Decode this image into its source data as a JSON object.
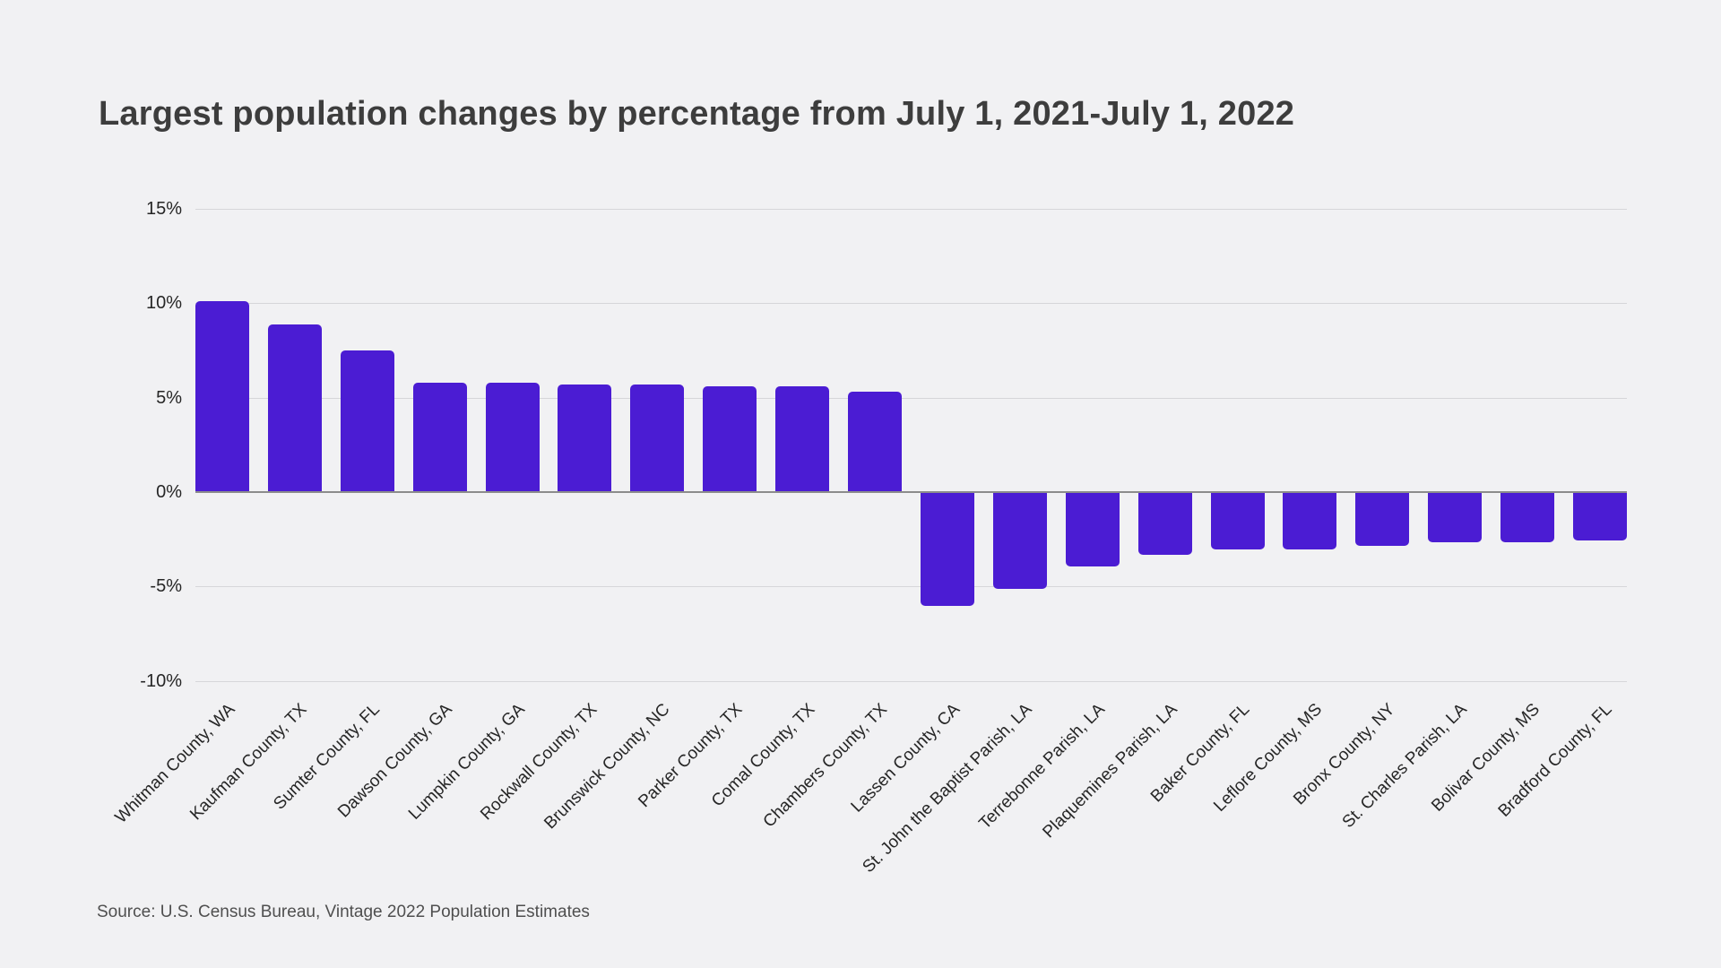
{
  "title": "Largest population changes by percentage from July 1, 2021-July 1, 2022",
  "source_note": "Source: U.S. Census Bureau, Vintage 2022 Population Estimates",
  "colors": {
    "background": "#F1F1F3",
    "bar": "#4B1CD3",
    "gridline": "#D6D6D9",
    "zero_line": "#8C8C8C",
    "title_text": "#3D3D3D",
    "axis_text": "#262626",
    "source_text": "#4F4F4F"
  },
  "chart_data": {
    "type": "bar",
    "title": "Largest population changes by percentage from July 1, 2021-July 1, 2022",
    "unit": "percent",
    "categories": [
      "Whitman County, WA",
      "Kaufman County, TX",
      "Sumter County, FL",
      "Dawson County, GA",
      "Lumpkin County, GA",
      "Rockwall County, TX",
      "Brunswick County, NC",
      "Parker County, TX",
      "Comal County, TX",
      "Chambers County, TX",
      "Lassen County, CA",
      "St. John the Baptist Parish, LA",
      "Terrebonne Parish, LA",
      "Plaquemines Parish, LA",
      "Baker County, FL",
      "Leflore County, MS",
      "Bronx County, NY",
      "St. Charles Parish, LA",
      "Bolivar County, MS",
      "Bradford County, FL"
    ],
    "values": [
      10.1,
      8.9,
      7.5,
      5.8,
      5.8,
      5.7,
      5.7,
      5.6,
      5.6,
      5.3,
      -6.0,
      -5.1,
      -3.9,
      -3.3,
      -3.0,
      -3.0,
      -2.8,
      -2.6,
      -2.6,
      -2.5
    ],
    "y_tick_labels": [
      "15%",
      "10%",
      "5%",
      "0%",
      "-5%",
      "-10%"
    ],
    "y_tick_values": [
      15,
      10,
      5,
      0,
      -5,
      -10
    ],
    "ylim": [
      -10,
      15
    ],
    "xlabel": "",
    "ylabel": "",
    "grid": true,
    "legend_position": "none",
    "source": "Source: U.S. Census Bureau, Vintage 2022 Population Estimates"
  }
}
